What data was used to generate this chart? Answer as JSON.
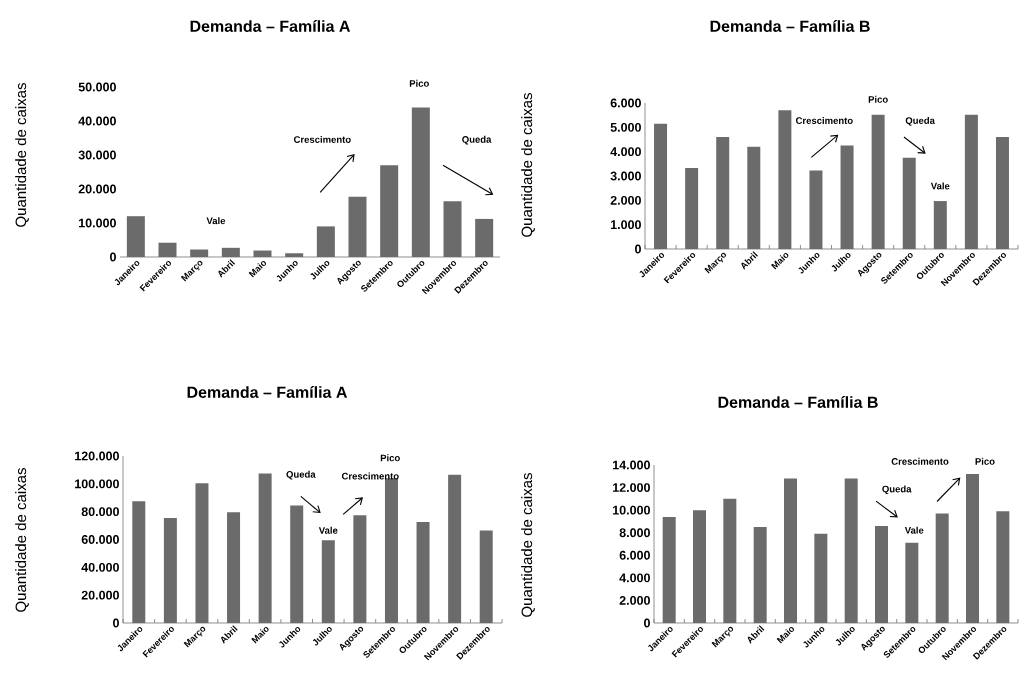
{
  "chart_data": [
    {
      "type": "bar",
      "title": "Demanda – Família A",
      "ylabel": "Quantidade de caixas",
      "color": "#6b6b6b",
      "categories": [
        "Janeiro",
        "Fevereiro",
        "Março",
        "Abril",
        "Maio",
        "Junho",
        "Julho",
        "Agosto",
        "Setembro",
        "Outubro",
        "Novembro",
        "Dezembro"
      ],
      "values": [
        12000,
        4200,
        2200,
        2700,
        1900,
        1100,
        9000,
        17700,
        27000,
        44000,
        16400,
        11200
      ],
      "ylim": [
        0,
        50000
      ],
      "yticks": [
        0,
        {
          "value": 10000,
          "label": "10.000"
        },
        {
          "value": 20000,
          "label": "20.000"
        },
        {
          "value": 30000,
          "label": "30.000"
        },
        {
          "value": 40000,
          "label": "40.000"
        },
        {
          "value": 50000,
          "label": "50.000"
        }
      ],
      "annotations": [
        "Vale",
        "Crescimento",
        "Pico",
        "Queda"
      ]
    },
    {
      "type": "bar",
      "title": "Demanda – Família B",
      "ylabel": "Quantidade de caixas",
      "color": "#6b6b6b",
      "categories": [
        "Janeiro",
        "Fevereiro",
        "Março",
        "Abril",
        "Maio",
        "Junho",
        "Julho",
        "Agosto",
        "Setembro",
        "Outubro",
        "Novembro",
        "Dezembro"
      ],
      "values": [
        5150,
        3330,
        4600,
        4200,
        5700,
        3230,
        4250,
        5520,
        3750,
        1970,
        5520,
        4600
      ],
      "ylim": [
        0,
        6000
      ],
      "yticks": [
        0,
        {
          "value": 1000,
          "label": "1.000"
        },
        {
          "value": 2000,
          "label": "2.000"
        },
        {
          "value": 3000,
          "label": "3.000"
        },
        {
          "value": 4000,
          "label": "4.000"
        },
        {
          "value": 5000,
          "label": "5.000"
        },
        {
          "value": 6000,
          "label": "6.000"
        }
      ],
      "annotations": [
        "Pico",
        "Crescimento",
        "Queda",
        "Vale"
      ]
    },
    {
      "type": "bar",
      "title": "Demanda – Família A",
      "ylabel": "Quantidade de caixas",
      "color": "#6b6b6b",
      "categories": [
        "Janeiro",
        "Fevereiro",
        "Março",
        "Abril",
        "Maio",
        "Junho",
        "Julho",
        "Agosto",
        "Setembro",
        "Outubro",
        "Novembro",
        "Dezembro"
      ],
      "values": [
        87500,
        75500,
        100500,
        79500,
        107500,
        84500,
        59500,
        77500,
        104000,
        72500,
        106500,
        66500
      ],
      "ylim": [
        0,
        120000
      ],
      "yticks": [
        0,
        {
          "value": 20000,
          "label": "20.000"
        },
        {
          "value": 40000,
          "label": "40.000"
        },
        {
          "value": 60000,
          "label": "60.000"
        },
        {
          "value": 80000,
          "label": "80.000"
        },
        {
          "value": 100000,
          "label": "100.000"
        },
        {
          "value": 120000,
          "label": "120.000"
        }
      ],
      "annotations": [
        "Queda",
        "Vale",
        "Pico",
        "Crescimento"
      ]
    },
    {
      "type": "bar",
      "title": "Demanda – Família B",
      "ylabel": "Quantidade de caixas",
      "color": "#6b6b6b",
      "categories": [
        "Janeiro",
        "Fevereiro",
        "Março",
        "Abril",
        "Maio",
        "Junho",
        "Julho",
        "Agosto",
        "Setembro",
        "Outubro",
        "Novembro",
        "Dezembro"
      ],
      "values": [
        9400,
        10000,
        11000,
        8500,
        12800,
        7900,
        12800,
        8600,
        7100,
        9700,
        13200,
        9900
      ],
      "ylim": [
        0,
        14000
      ],
      "yticks": [
        0,
        {
          "value": 2000,
          "label": "2.000"
        },
        {
          "value": 4000,
          "label": "4.000"
        },
        {
          "value": 6000,
          "label": "6.000"
        },
        {
          "value": 8000,
          "label": "8.000"
        },
        {
          "value": 10000,
          "label": "10.000"
        },
        {
          "value": 12000,
          "label": "12.000"
        },
        {
          "value": 14000,
          "label": "14.000"
        }
      ],
      "annotations": [
        "Crescimento",
        "Pico",
        "Queda",
        "Vale"
      ]
    }
  ]
}
